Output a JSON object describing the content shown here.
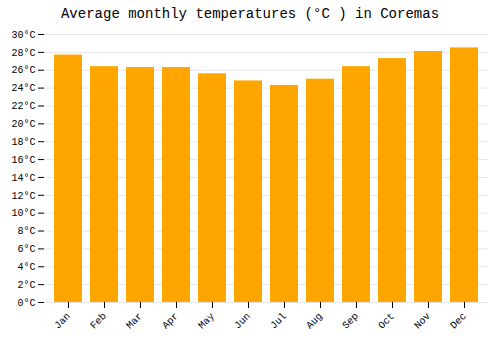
{
  "chart_data": {
    "type": "bar",
    "title": "Average monthly temperatures (°C ) in Coremas",
    "categories": [
      "Jan",
      "Feb",
      "Mar",
      "Apr",
      "May",
      "Jun",
      "Jul",
      "Aug",
      "Sep",
      "Oct",
      "Nov",
      "Dec"
    ],
    "values": [
      27.7,
      26.4,
      26.3,
      26.3,
      25.6,
      24.8,
      24.3,
      25.0,
      26.4,
      27.3,
      28.1,
      28.5
    ],
    "color": "#FFA500",
    "ylim": [
      0,
      30
    ],
    "yticks": [
      {
        "value": 0,
        "label": "0°C"
      },
      {
        "value": 2,
        "label": "2°C"
      },
      {
        "value": 4,
        "label": "4°C"
      },
      {
        "value": 6,
        "label": "6°C"
      },
      {
        "value": 8,
        "label": "8°C"
      },
      {
        "value": 10,
        "label": "10°C"
      },
      {
        "value": 12,
        "label": "12°C"
      },
      {
        "value": 14,
        "label": "14°C"
      },
      {
        "value": 16,
        "label": "16°C"
      },
      {
        "value": 18,
        "label": "18°C"
      },
      {
        "value": 20,
        "label": "20°C"
      },
      {
        "value": 22,
        "label": "22°C"
      },
      {
        "value": 24,
        "label": "24°C"
      },
      {
        "value": 26,
        "label": "26°C"
      },
      {
        "value": 28,
        "label": "28°C"
      },
      {
        "value": 30,
        "label": "30°C"
      }
    ],
    "grid": true
  }
}
